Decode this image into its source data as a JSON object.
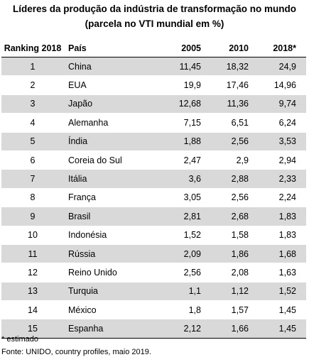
{
  "title": {
    "line1": "Líderes da produção da indústria de transformação no mundo",
    "line2": "(parcela  no VTI mundial em %)"
  },
  "table": {
    "headers": [
      "Ranking 2018",
      "País",
      "2005",
      "2010",
      "2018*"
    ],
    "rows": [
      {
        "rank": "1",
        "country": "China",
        "y2005": "11,45",
        "y2010": "18,32",
        "y2018": "24,9"
      },
      {
        "rank": "2",
        "country": "EUA",
        "y2005": "19,9",
        "y2010": "17,46",
        "y2018": "14,96"
      },
      {
        "rank": "3",
        "country": "Japão",
        "y2005": "12,68",
        "y2010": "11,36",
        "y2018": "9,74"
      },
      {
        "rank": "4",
        "country": "Alemanha",
        "y2005": "7,15",
        "y2010": "6,51",
        "y2018": "6,24"
      },
      {
        "rank": "5",
        "country": "Índia",
        "y2005": "1,88",
        "y2010": "2,56",
        "y2018": "3,53"
      },
      {
        "rank": "6",
        "country": "Coreia do Sul",
        "y2005": "2,47",
        "y2010": "2,9",
        "y2018": "2,94"
      },
      {
        "rank": "7",
        "country": "Itália",
        "y2005": "3,6",
        "y2010": "2,88",
        "y2018": "2,33"
      },
      {
        "rank": "8",
        "country": "França",
        "y2005": "3,05",
        "y2010": "2,56",
        "y2018": "2,24"
      },
      {
        "rank": "9",
        "country": "Brasil",
        "y2005": "2,81",
        "y2010": "2,68",
        "y2018": "1,83"
      },
      {
        "rank": "10",
        "country": "Indonésia",
        "y2005": "1,52",
        "y2010": "1,58",
        "y2018": "1,83"
      },
      {
        "rank": "11",
        "country": "Rússia",
        "y2005": "2,09",
        "y2010": "1,86",
        "y2018": "1,68"
      },
      {
        "rank": "12",
        "country": "Reino Unido",
        "y2005": "2,56",
        "y2010": "2,08",
        "y2018": "1,63"
      },
      {
        "rank": "13",
        "country": "Turquia",
        "y2005": "1,1",
        "y2010": "1,12",
        "y2018": "1,52"
      },
      {
        "rank": "14",
        "country": "México",
        "y2005": "1,8",
        "y2010": "1,57",
        "y2018": "1,45"
      },
      {
        "rank": "15",
        "country": "Espanha",
        "y2005": "2,12",
        "y2010": "1,66",
        "y2018": "1,45"
      }
    ]
  },
  "footnotes": {
    "note": "* estimado",
    "source": "Fonte: UNIDO, country profiles, maio 2019."
  },
  "colors": {
    "stripe": "#d9d9d9",
    "background": "#ffffff",
    "rule": "#000000"
  }
}
